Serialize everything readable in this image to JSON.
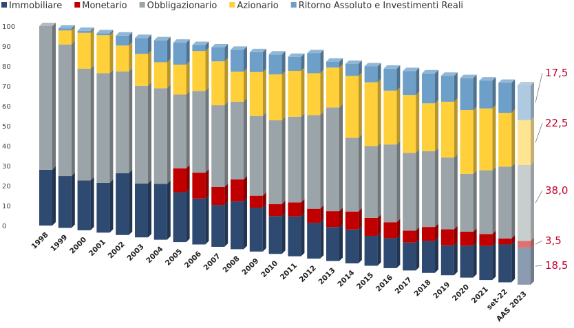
{
  "chart_data": {
    "type": "bar",
    "stacked": true,
    "percent": true,
    "ylim": [
      0,
      100
    ],
    "yticks": [
      "0",
      "10",
      "20",
      "30",
      "40",
      "50",
      "60",
      "70",
      "80",
      "90",
      "100"
    ],
    "legend_position": "top",
    "categories": [
      "1998",
      "1999",
      "2000",
      "2001",
      "2002",
      "2003",
      "2004",
      "2005",
      "2006",
      "2007",
      "2008",
      "2009",
      "2010",
      "2011",
      "2012",
      "2013",
      "2014",
      "2015",
      "2016",
      "2017",
      "2018",
      "2019",
      "2020",
      "2021",
      "set-22",
      "AAS 2023"
    ],
    "series": [
      {
        "name": "Immobiliare",
        "color": "#2e4a70",
        "values": [
          28,
          26,
          25,
          25,
          31,
          27,
          28,
          25,
          23,
          21,
          24,
          22,
          19,
          20,
          18,
          17,
          17,
          15,
          15,
          14,
          16,
          15,
          16,
          17,
          19,
          18.5
        ]
      },
      {
        "name": "Monetario",
        "color": "#c00000",
        "values": [
          0,
          0,
          0,
          0,
          0,
          0,
          0,
          12,
          13,
          9,
          11,
          6,
          6,
          7,
          7,
          8,
          9,
          9,
          8,
          6,
          7,
          8,
          7,
          6,
          3,
          3.5
        ]
      },
      {
        "name": "Obbligazionario",
        "color": "#9ba4a8",
        "values": [
          72,
          66,
          56,
          55,
          51,
          49,
          48,
          37,
          41,
          41,
          39,
          40,
          42,
          43,
          47,
          52,
          37,
          36,
          39,
          39,
          38,
          36,
          29,
          32,
          36,
          38.0
        ]
      },
      {
        "name": "Azionario",
        "color": "#ffd03a",
        "values": [
          0,
          7,
          18,
          19,
          13,
          16,
          13,
          15,
          20,
          22,
          15,
          22,
          23,
          23,
          21,
          20,
          31,
          32,
          27,
          29,
          24,
          28,
          32,
          31,
          27,
          22.5
        ]
      },
      {
        "name": "Ritorno Assoluto e Investimenti Reali",
        "color": "#6e9fc8",
        "values": [
          0,
          1,
          1,
          1,
          5,
          8,
          11,
          11,
          3,
          7,
          11,
          10,
          10,
          7,
          10,
          3,
          6,
          8,
          11,
          12,
          15,
          13,
          16,
          14,
          15,
          17.5
        ]
      }
    ],
    "annotations": [
      {
        "series": "Ritorno Assoluto e Investimenti Reali",
        "label": "17,5"
      },
      {
        "series": "Azionario",
        "label": "22,5"
      },
      {
        "series": "Obbligazionario",
        "label": "38,0"
      },
      {
        "series": "Monetario",
        "label": "3,5"
      },
      {
        "series": "Immobiliare",
        "label": "18,5"
      }
    ]
  }
}
